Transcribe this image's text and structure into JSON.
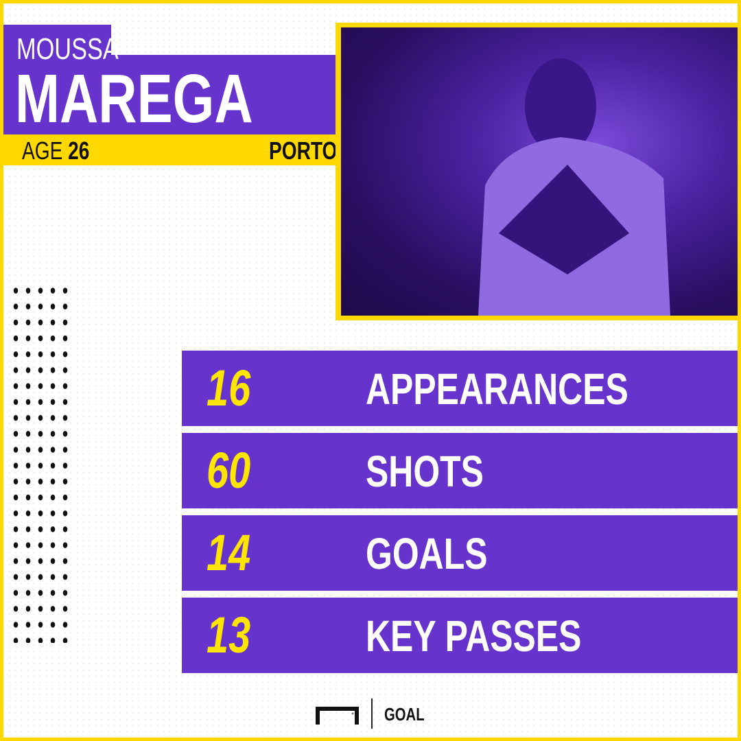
{
  "player": {
    "first_name": "MOUSSA",
    "last_name": "MAREGA",
    "age_label": "AGE",
    "age": "26",
    "club": "PORTO"
  },
  "stats": [
    {
      "value": "16",
      "label": "APPEARANCES"
    },
    {
      "value": "60",
      "label": "SHOTS"
    },
    {
      "value": "14",
      "label": "GOALS"
    },
    {
      "value": "13",
      "label": "KEY PASSES"
    }
  ],
  "brand": {
    "name": "GOAL"
  },
  "colors": {
    "purple": "#6633cc",
    "yellow": "#ffd800",
    "number_yellow": "#ffe500"
  }
}
